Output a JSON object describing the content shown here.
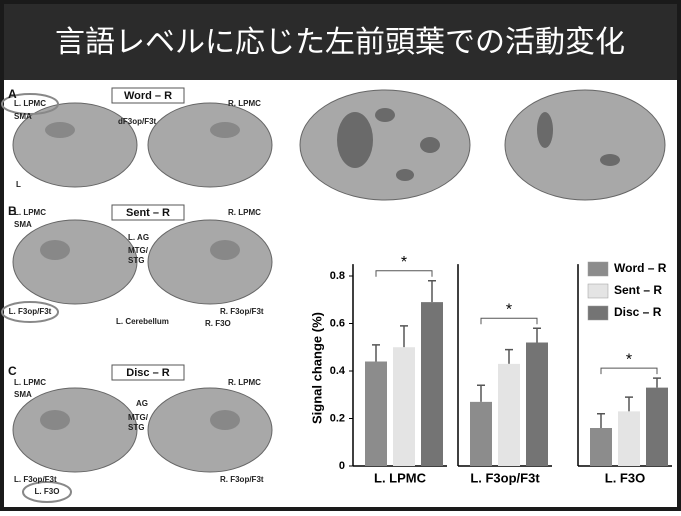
{
  "header": {
    "title": "言語レベルに応じた左前頭葉での活動変化"
  },
  "figure": {
    "panels": [
      {
        "label": "A",
        "condition": "Word – R",
        "annotations": [
          "L. LPMC",
          "SMA",
          "dF3op/F3t",
          "R. LPMC",
          "L"
        ]
      },
      {
        "label": "B",
        "condition": "Sent – R",
        "annotations": [
          "L. LPMC",
          "SMA",
          "L. AG",
          "MTG/",
          "STG",
          "R. LPMC",
          "L. F3op/F3t",
          "L. Cerebellum",
          "R. F3op/F3t",
          "R. F3O"
        ]
      },
      {
        "label": "C",
        "condition": "Disc – R",
        "annotations": [
          "L. LPMC",
          "SMA",
          "AG",
          "MTG/",
          "STG",
          "R. LPMC",
          "L. F3op/F3t",
          "R. F3op/F3t",
          "L. F3O"
        ]
      }
    ]
  },
  "chart_data": {
    "type": "bar",
    "y_label": "Signal change (%)",
    "categories": [
      "L. LPMC",
      "L. F3op/F3t",
      "L. F3O"
    ],
    "series": [
      {
        "name": "Word – R",
        "color": "#8c8c8c",
        "values": [
          0.44,
          0.27,
          0.16
        ],
        "errors": [
          0.07,
          0.07,
          0.06
        ]
      },
      {
        "name": "Sent – R",
        "color": "#e4e4e4",
        "values": [
          0.5,
          0.43,
          0.23
        ],
        "errors": [
          0.09,
          0.06,
          0.06
        ]
      },
      {
        "name": "Disc – R",
        "color": "#747474",
        "values": [
          0.69,
          0.52,
          0.33
        ],
        "errors": [
          0.09,
          0.06,
          0.04
        ]
      }
    ],
    "annotations": [
      "*",
      "*",
      "*"
    ],
    "ylim": [
      0,
      0.85
    ],
    "yticks": [
      0,
      0.2,
      0.4,
      0.6,
      0.8
    ],
    "legend": "top-right"
  }
}
